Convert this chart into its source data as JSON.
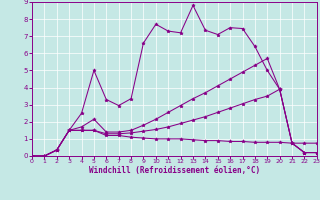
{
  "xlabel": "Windchill (Refroidissement éolien,°C)",
  "bg_color": "#c5e8e5",
  "line_color": "#880088",
  "grid_color": "#b8dbd8",
  "xlim": [
    0,
    23
  ],
  "ylim": [
    0,
    9
  ],
  "xticks": [
    0,
    1,
    2,
    3,
    4,
    5,
    6,
    7,
    8,
    9,
    10,
    11,
    12,
    13,
    14,
    15,
    16,
    17,
    18,
    19,
    20,
    21,
    22,
    23
  ],
  "yticks": [
    0,
    1,
    2,
    3,
    4,
    5,
    6,
    7,
    8,
    9
  ],
  "s1_y": [
    0.0,
    0.0,
    0.35,
    1.5,
    1.5,
    1.5,
    1.2,
    1.2,
    1.1,
    1.05,
    1.0,
    1.0,
    1.0,
    0.95,
    0.9,
    0.9,
    0.85,
    0.85,
    0.8,
    0.8,
    0.8,
    0.75,
    0.75,
    0.75
  ],
  "s2_y": [
    0.0,
    0.0,
    0.35,
    1.5,
    1.5,
    1.5,
    1.3,
    1.3,
    1.35,
    1.45,
    1.55,
    1.7,
    1.9,
    2.1,
    2.3,
    2.55,
    2.8,
    3.05,
    3.3,
    3.5,
    3.9,
    0.75,
    0.2,
    0.2
  ],
  "s3_y": [
    0.0,
    0.0,
    0.35,
    1.5,
    1.7,
    2.15,
    1.4,
    1.4,
    1.5,
    1.8,
    2.15,
    2.55,
    2.95,
    3.35,
    3.7,
    4.1,
    4.5,
    4.9,
    5.3,
    5.7,
    3.9,
    0.75,
    0.2,
    0.2
  ],
  "s4_y": [
    0.0,
    0.0,
    0.35,
    1.5,
    2.5,
    5.0,
    3.3,
    2.95,
    3.35,
    6.6,
    7.7,
    7.3,
    7.2,
    8.8,
    7.35,
    7.1,
    7.5,
    7.45,
    6.4,
    5.0,
    3.9,
    0.75,
    0.2,
    0.2
  ]
}
